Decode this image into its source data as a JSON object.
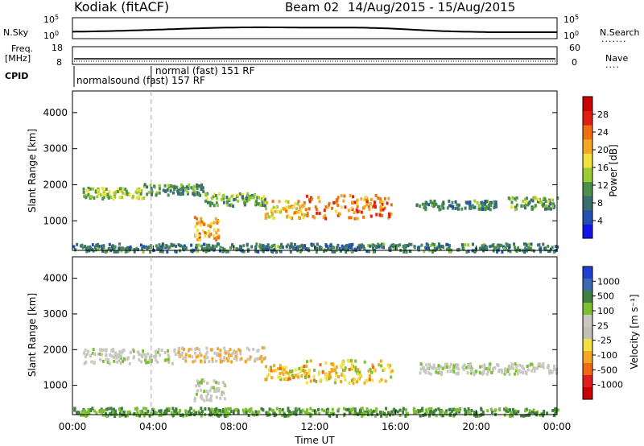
{
  "header": {
    "station": "Kodiak (fitACF)",
    "beam": "Beam 02",
    "dates": "14/Aug/2015 - 15/Aug/2015"
  },
  "status_panels": {
    "sky_label": "N.Sky",
    "search_label": "N.Search",
    "freq_label_line1": "Freq.",
    "freq_label_line2": "[MHz]",
    "nave_label": "Nave",
    "cpid_label": "CPID",
    "noise_ticks_left": [
      "10^5",
      "10^0"
    ],
    "noise_ticks_right": [
      "10^5",
      "10^0"
    ],
    "freq_ticks": [
      "18",
      "8"
    ],
    "nave_ticks": [
      "60",
      "0"
    ],
    "cpid_segments": [
      {
        "start_hour": 0,
        "text": "normalsound (fast) 157 RF"
      },
      {
        "start_hour": 3.9,
        "text": "normal (fast) 151 RF"
      }
    ]
  },
  "colors": {
    "power": [
      "#1414e6",
      "#2050b0",
      "#3b6e6e",
      "#4b8f4b",
      "#9acd32",
      "#f0e040",
      "#f5a623",
      "#f07010",
      "#e02010",
      "#cc0000"
    ],
    "velocity": [
      "#2040d0",
      "#3a6ab0",
      "#3f7f3f",
      "#7cc030",
      "#c8c8c0",
      "#c0c0b8",
      "#f0e040",
      "#f5a623",
      "#ef6a10",
      "#e02020",
      "#cc0000"
    ]
  },
  "chart_data": [
    {
      "type": "heatmap",
      "name": "power-panel",
      "xlabel": "",
      "ylabel": "Slant Range [km]",
      "xlim": [
        0,
        24
      ],
      "ylim": [
        180,
        4600
      ],
      "yticks": [
        1000,
        2000,
        3000,
        4000
      ],
      "colorbar": {
        "label": "Power [dB]",
        "ticks": [
          "4",
          "8",
          "12",
          "16",
          "20",
          "24",
          "28"
        ],
        "range": [
          0,
          32
        ]
      },
      "features": [
        {
          "hours": [
            0.5,
            3.5
          ],
          "range_km": [
            1650,
            1950
          ],
          "value_db": 14
        },
        {
          "hours": [
            3.5,
            6.5
          ],
          "range_km": [
            1750,
            2050
          ],
          "value_db": 10
        },
        {
          "hours": [
            6.5,
            9.5
          ],
          "range_km": [
            1450,
            1800
          ],
          "value_db": 12
        },
        {
          "hours": [
            9.5,
            11.5
          ],
          "range_km": [
            1100,
            1600
          ],
          "value_db": 20
        },
        {
          "hours": [
            11.5,
            15.8
          ],
          "range_km": [
            1100,
            1750
          ],
          "value_db": 24
        },
        {
          "hours": [
            6.0,
            7.2
          ],
          "range_km": [
            500,
            1150
          ],
          "value_db": 22
        },
        {
          "hours": [
            17.0,
            21.0
          ],
          "range_km": [
            1350,
            1600
          ],
          "value_db": 8
        },
        {
          "hours": [
            21.5,
            24.0
          ],
          "range_km": [
            1350,
            1700
          ],
          "value_db": 12
        },
        {
          "hours": [
            0.0,
            24.0
          ],
          "range_km": [
            180,
            400
          ],
          "value_db": 8
        }
      ]
    },
    {
      "type": "heatmap",
      "name": "velocity-panel",
      "xlabel": "Time UT",
      "ylabel": "Slant Range [km]",
      "xlim": [
        0,
        24
      ],
      "ylim": [
        180,
        4600
      ],
      "yticks": [
        1000,
        2000,
        3000,
        4000
      ],
      "xticks": [
        "00:00",
        "04:00",
        "08:00",
        "12:00",
        "16:00",
        "20:00",
        "00:00"
      ],
      "colorbar": {
        "label": "Velocity [m s⁻¹]",
        "ticks": [
          "1000",
          "500",
          "100",
          "25",
          "-25",
          "-100",
          "-500",
          "-1000"
        ]
      },
      "features": [
        {
          "hours": [
            0.5,
            5.0
          ],
          "range_km": [
            1650,
            2050
          ],
          "velocity": 0
        },
        {
          "hours": [
            5.0,
            9.5
          ],
          "range_km": [
            1700,
            2100
          ],
          "velocity": -60
        },
        {
          "hours": [
            9.5,
            11.5
          ],
          "range_km": [
            1200,
            1600
          ],
          "velocity": -120
        },
        {
          "hours": [
            11.5,
            15.8
          ],
          "range_km": [
            1100,
            1750
          ],
          "velocity": -150
        },
        {
          "hours": [
            6.0,
            7.5
          ],
          "range_km": [
            600,
            1200
          ],
          "velocity": 0
        },
        {
          "hours": [
            17.0,
            24.0
          ],
          "range_km": [
            1350,
            1650
          ],
          "velocity": 0
        },
        {
          "hours": [
            0.0,
            24.0
          ],
          "range_km": [
            180,
            400
          ],
          "velocity": 80
        }
      ]
    }
  ]
}
